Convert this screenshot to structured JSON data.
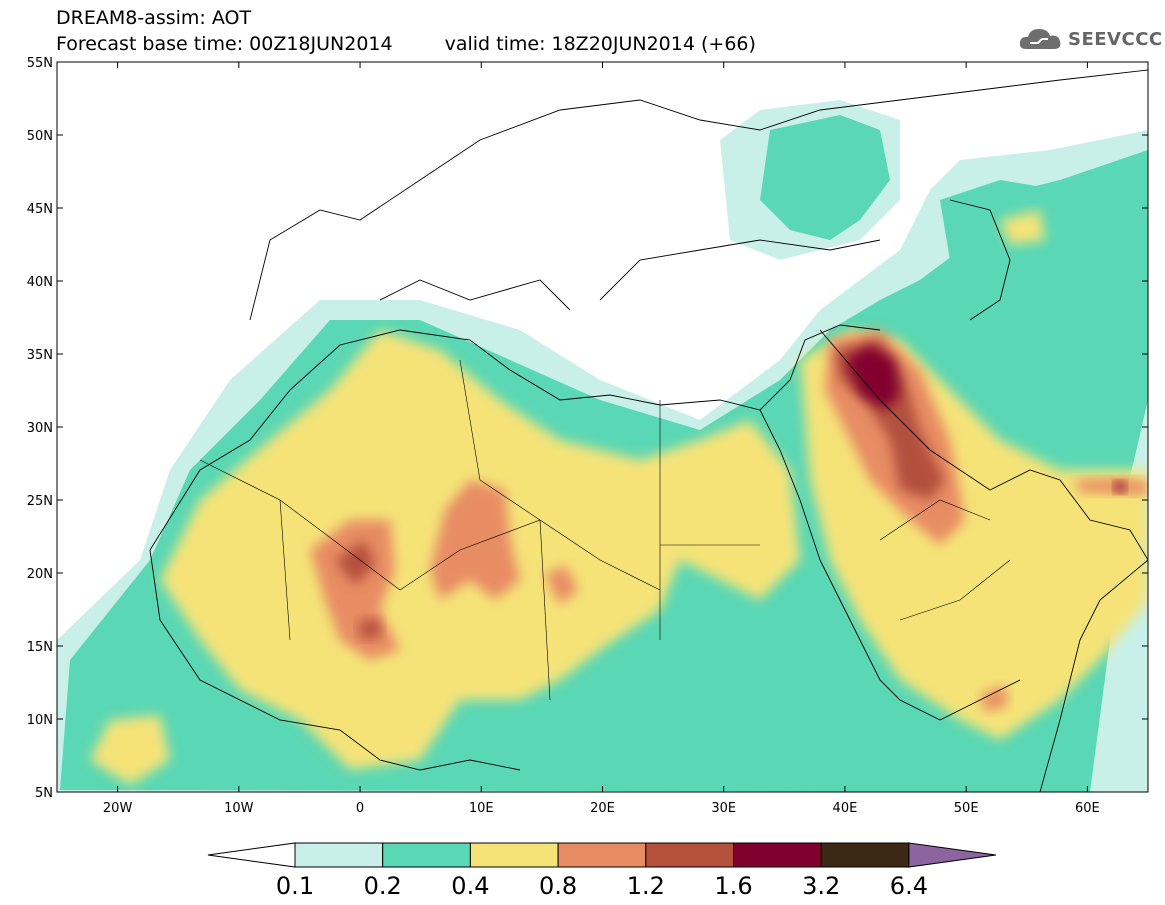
{
  "title": {
    "line1": "DREAM8-assim: AOT",
    "base_time": "Forecast base time: 00Z18JUN2014",
    "valid_time": "valid time: 18Z20JUN2014 (+66)"
  },
  "logo": {
    "text": "SEEVCCC",
    "icon": "cloud-icon"
  },
  "map": {
    "projection": "lat-lon",
    "lon_range": [
      -25,
      65
    ],
    "lat_range": [
      5,
      55
    ],
    "lat_ticks": [
      "5N",
      "10N",
      "15N",
      "20N",
      "25N",
      "30N",
      "35N",
      "40N",
      "45N",
      "50N",
      "55N"
    ],
    "lon_ticks": [
      "20W",
      "10W",
      "0",
      "10E",
      "20E",
      "30E",
      "40E",
      "50E",
      "60E"
    ],
    "variable": "Aerosol Optical Thickness"
  },
  "colorbar": {
    "labels": [
      "0.1",
      "0.2",
      "0.4",
      "0.8",
      "1.2",
      "1.6",
      "3.2",
      "6.4"
    ],
    "colors": [
      "#ffffff",
      "#c8f0e8",
      "#5ad7b4",
      "#f5e378",
      "#e88c64",
      "#b4503c",
      "#82002d",
      "#3c2814",
      "#8c64a0"
    ]
  }
}
